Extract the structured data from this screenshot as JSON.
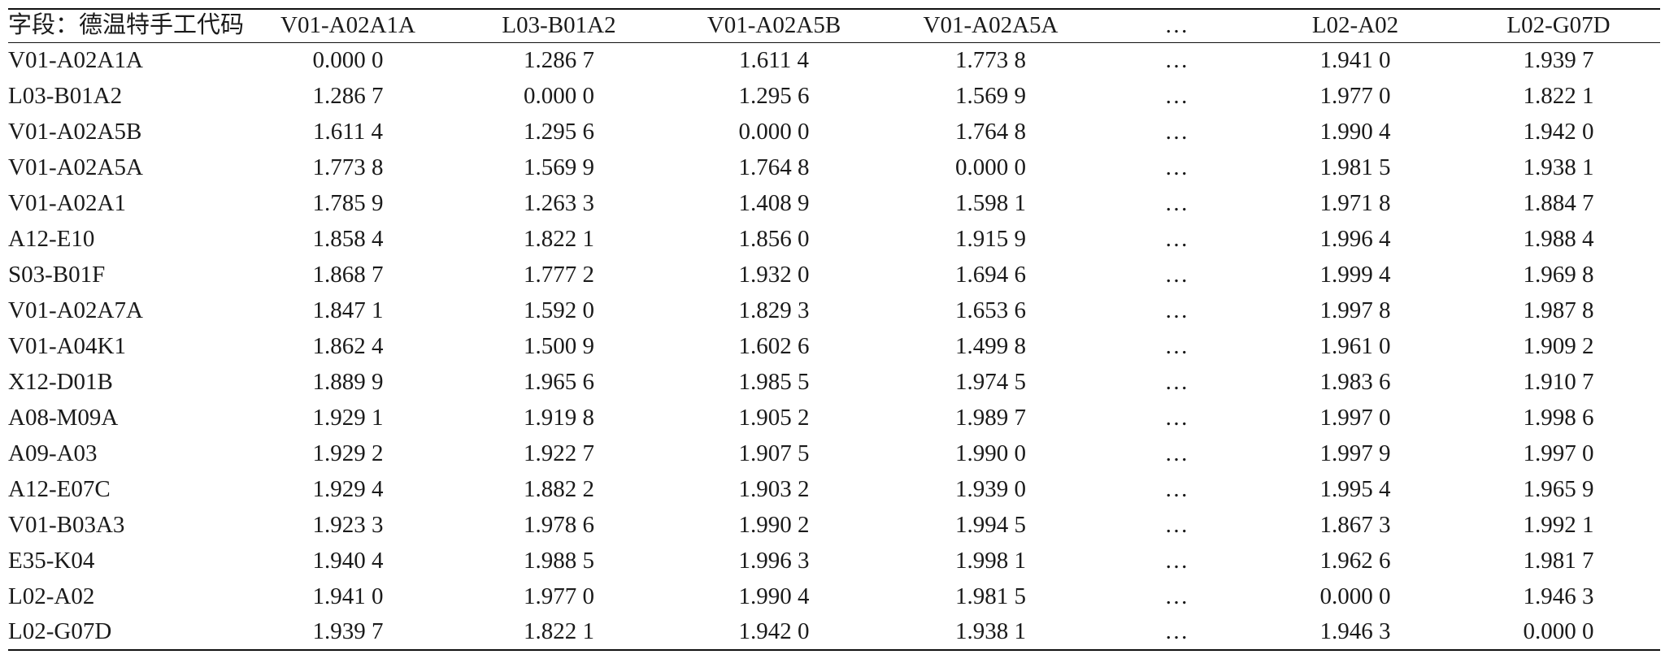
{
  "table": {
    "corner_label": "字段：德温特手工代码",
    "columns": [
      "V01-A02A1A",
      "L03-B01A2",
      "V01-A02A5B",
      "V01-A02A5A",
      "…",
      "L02-A02",
      "L02-G07D"
    ],
    "rows": [
      {
        "label": "V01-A02A1A",
        "values": [
          "0.000 0",
          "1.286 7",
          "1.611 4",
          "1.773 8",
          "…",
          "1.941 0",
          "1.939 7"
        ]
      },
      {
        "label": "L03-B01A2",
        "values": [
          "1.286 7",
          "0.000 0",
          "1.295 6",
          "1.569 9",
          "…",
          "1.977 0",
          "1.822 1"
        ]
      },
      {
        "label": "V01-A02A5B",
        "values": [
          "1.611 4",
          "1.295 6",
          "0.000 0",
          "1.764 8",
          "…",
          "1.990 4",
          "1.942 0"
        ]
      },
      {
        "label": "V01-A02A5A",
        "values": [
          "1.773 8",
          "1.569 9",
          "1.764 8",
          "0.000 0",
          "…",
          "1.981 5",
          "1.938 1"
        ]
      },
      {
        "label": "V01-A02A1",
        "values": [
          "1.785 9",
          "1.263 3",
          "1.408 9",
          "1.598 1",
          "…",
          "1.971 8",
          "1.884 7"
        ]
      },
      {
        "label": "A12-E10",
        "values": [
          "1.858 4",
          "1.822 1",
          "1.856 0",
          "1.915 9",
          "…",
          "1.996 4",
          "1.988 4"
        ]
      },
      {
        "label": "S03-B01F",
        "values": [
          "1.868 7",
          "1.777 2",
          "1.932 0",
          "1.694 6",
          "…",
          "1.999 4",
          "1.969 8"
        ]
      },
      {
        "label": "V01-A02A7A",
        "values": [
          "1.847 1",
          "1.592 0",
          "1.829 3",
          "1.653 6",
          "…",
          "1.997 8",
          "1.987 8"
        ]
      },
      {
        "label": "V01-A04K1",
        "values": [
          "1.862 4",
          "1.500 9",
          "1.602 6",
          "1.499 8",
          "…",
          "1.961 0",
          "1.909 2"
        ]
      },
      {
        "label": "X12-D01B",
        "values": [
          "1.889 9",
          "1.965 6",
          "1.985 5",
          "1.974 5",
          "…",
          "1.983 6",
          "1.910 7"
        ]
      },
      {
        "label": "A08-M09A",
        "values": [
          "1.929 1",
          "1.919 8",
          "1.905 2",
          "1.989 7",
          "…",
          "1.997 0",
          "1.998 6"
        ]
      },
      {
        "label": "A09-A03",
        "values": [
          "1.929 2",
          "1.922 7",
          "1.907 5",
          "1.990 0",
          "…",
          "1.997 9",
          "1.997 0"
        ]
      },
      {
        "label": "A12-E07C",
        "values": [
          "1.929 4",
          "1.882 2",
          "1.903 2",
          "1.939 0",
          "…",
          "1.995 4",
          "1.965 9"
        ]
      },
      {
        "label": "V01-B03A3",
        "values": [
          "1.923 3",
          "1.978 6",
          "1.990 2",
          "1.994 5",
          "…",
          "1.867 3",
          "1.992 1"
        ]
      },
      {
        "label": "E35-K04",
        "values": [
          "1.940 4",
          "1.988 5",
          "1.996 3",
          "1.998 1",
          "…",
          "1.962 6",
          "1.981 7"
        ]
      },
      {
        "label": "L02-A02",
        "values": [
          "1.941 0",
          "1.977 0",
          "1.990 4",
          "1.981 5",
          "…",
          "0.000 0",
          "1.946 3"
        ]
      },
      {
        "label": "L02-G07D",
        "values": [
          "1.939 7",
          "1.822 1",
          "1.942 0",
          "1.938 1",
          "…",
          "1.946 3",
          "0.000 0"
        ]
      }
    ]
  }
}
